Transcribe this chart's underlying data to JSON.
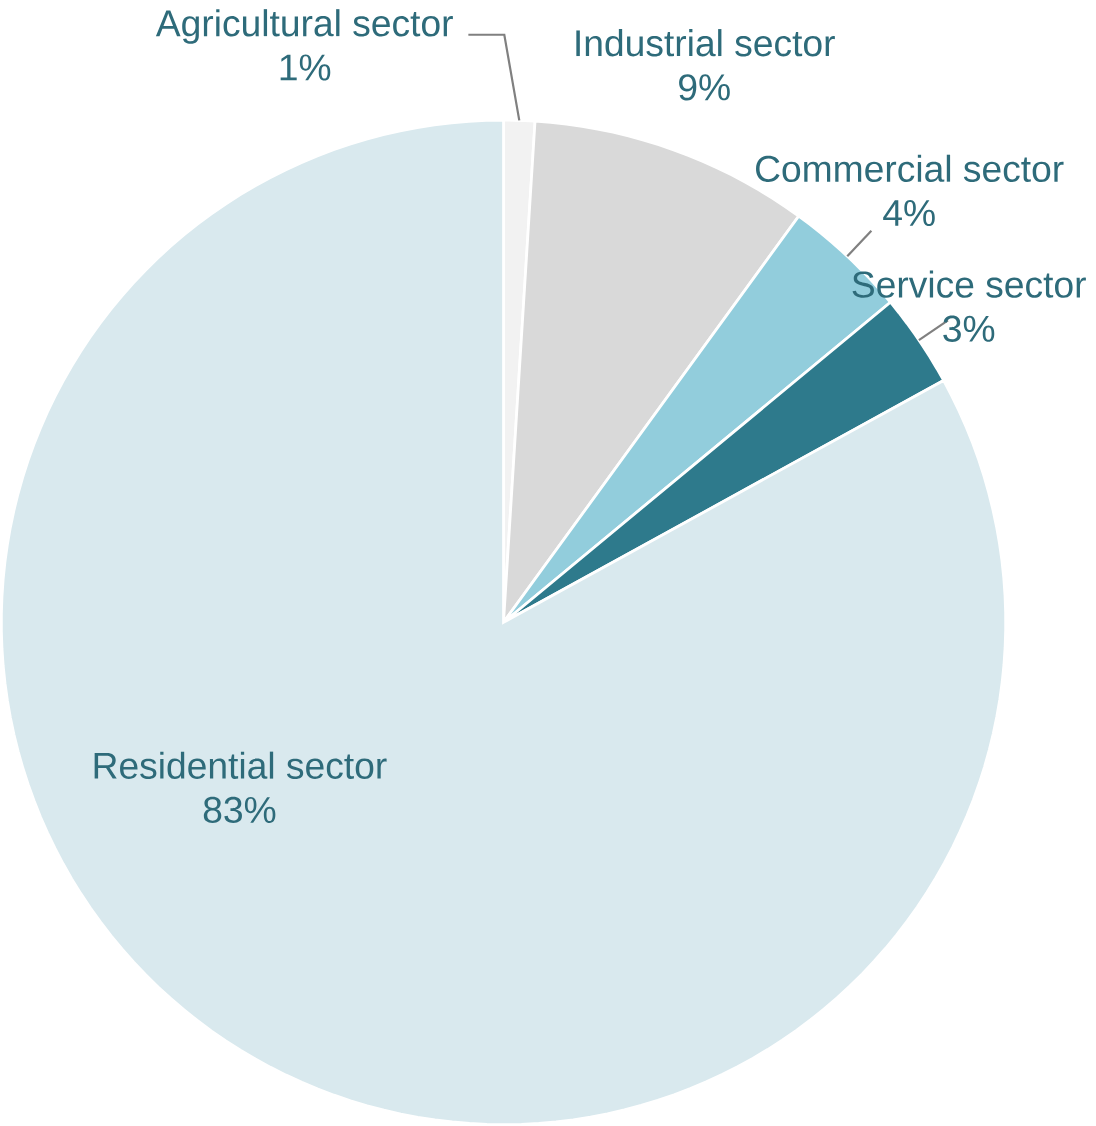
{
  "chart_data": {
    "type": "pie",
    "categories": [
      "Agricultural sector",
      "Industrial sector",
      "Commercial sector",
      "Service sector",
      "Residential sector"
    ],
    "values": [
      1,
      9,
      4,
      3,
      83
    ],
    "value_labels": [
      "1%",
      "9%",
      "4%",
      "3%",
      "83%"
    ],
    "colors": [
      "#f2f2f2",
      "#d9d9d9",
      "#92cddc",
      "#2e7a8c",
      "#d9e9ee"
    ]
  }
}
